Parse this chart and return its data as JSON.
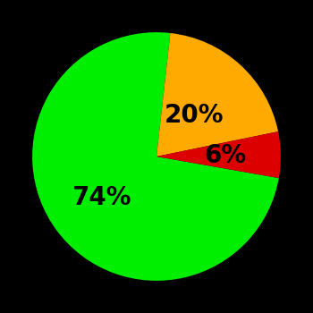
{
  "slices": [
    74,
    20,
    6
  ],
  "colors": [
    "#00ee00",
    "#ffaa00",
    "#dd0000"
  ],
  "labels": [
    "74%",
    "20%",
    "6%"
  ],
  "background_color": "#000000",
  "startangle": -10,
  "figsize": [
    3.5,
    3.5
  ],
  "dpi": 100,
  "label_fontsize": 20,
  "label_fontweight": "bold",
  "label_radii": [
    0.55,
    0.45,
    0.55
  ]
}
